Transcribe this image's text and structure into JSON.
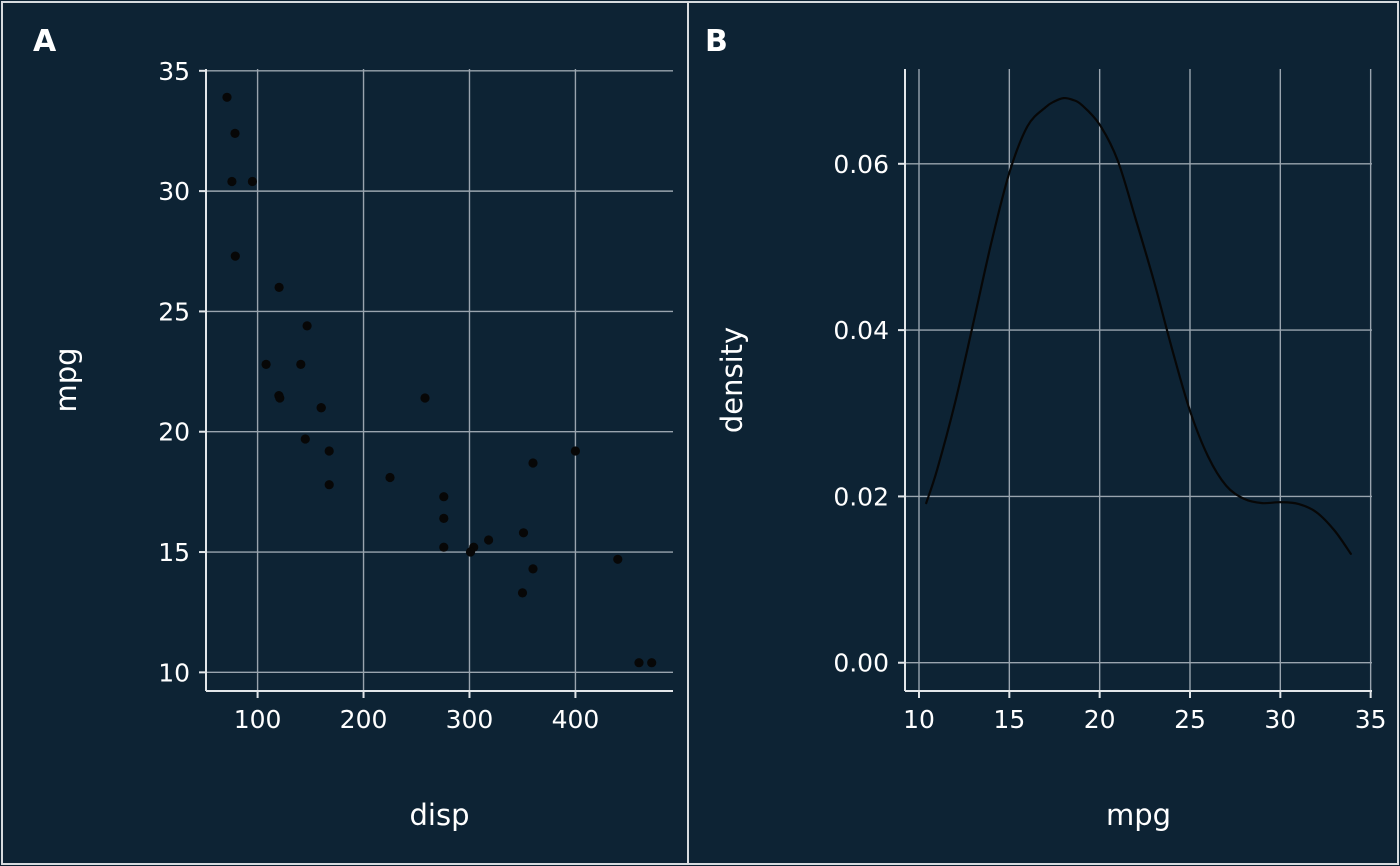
{
  "theme": {
    "background": "#0d2334",
    "panel_border": "#d7dbdf",
    "grid_color": "#99a4ae",
    "axis_color": "#e2e6e9",
    "text_color": "#ffffff",
    "point_color": "#070707",
    "curve_color": "#070707"
  },
  "chart_data": [
    {
      "id": "panel-a",
      "type": "scatter",
      "panel_label": "A",
      "xlabel": "disp",
      "ylabel": "mpg",
      "xlim": [
        51.3,
        492.1
      ],
      "ylim": [
        9.225,
        35.075
      ],
      "grid": true,
      "legend": "none",
      "x_ticks": [
        {
          "v": 100,
          "label": "100"
        },
        {
          "v": 200,
          "label": "200"
        },
        {
          "v": 300,
          "label": "300"
        },
        {
          "v": 400,
          "label": "400"
        }
      ],
      "y_ticks": [
        {
          "v": 10,
          "label": "10"
        },
        {
          "v": 15,
          "label": "15"
        },
        {
          "v": 20,
          "label": "20"
        },
        {
          "v": 25,
          "label": "25"
        },
        {
          "v": 30,
          "label": "30"
        },
        {
          "v": 35,
          "label": "35"
        }
      ],
      "points": [
        [
          160,
          21.0
        ],
        [
          160,
          21.0
        ],
        [
          108,
          22.8
        ],
        [
          258,
          21.4
        ],
        [
          360,
          18.7
        ],
        [
          225,
          18.1
        ],
        [
          360,
          14.3
        ],
        [
          146.7,
          24.4
        ],
        [
          140.8,
          22.8
        ],
        [
          167.6,
          19.2
        ],
        [
          167.6,
          17.8
        ],
        [
          275.8,
          16.4
        ],
        [
          275.8,
          17.3
        ],
        [
          275.8,
          15.2
        ],
        [
          472,
          10.4
        ],
        [
          460,
          10.4
        ],
        [
          440,
          14.7
        ],
        [
          78.7,
          32.4
        ],
        [
          75.7,
          30.4
        ],
        [
          71.1,
          33.9
        ],
        [
          120.1,
          21.5
        ],
        [
          318,
          15.5
        ],
        [
          304,
          15.2
        ],
        [
          350,
          13.3
        ],
        [
          400,
          19.2
        ],
        [
          79,
          27.3
        ],
        [
          120.3,
          26.0
        ],
        [
          95.1,
          30.4
        ],
        [
          351,
          15.8
        ],
        [
          145,
          19.7
        ],
        [
          301,
          15.0
        ],
        [
          121,
          21.4
        ]
      ]
    },
    {
      "id": "panel-b",
      "type": "line",
      "panel_label": "B",
      "xlabel": "mpg",
      "ylabel": "density",
      "xlim": [
        9.225,
        35.075
      ],
      "ylim": [
        -0.0034,
        0.0714
      ],
      "grid": true,
      "legend": "none",
      "x_ticks": [
        {
          "v": 10,
          "label": "10"
        },
        {
          "v": 15,
          "label": "15"
        },
        {
          "v": 20,
          "label": "20"
        },
        {
          "v": 25,
          "label": "25"
        },
        {
          "v": 30,
          "label": "30"
        },
        {
          "v": 35,
          "label": "35"
        }
      ],
      "y_ticks": [
        {
          "v": 0.0,
          "label": "0.00"
        },
        {
          "v": 0.02,
          "label": "0.02"
        },
        {
          "v": 0.04,
          "label": "0.04"
        },
        {
          "v": 0.06,
          "label": "0.06"
        }
      ],
      "curve": [
        [
          10.4,
          0.0192
        ],
        [
          11,
          0.0232
        ],
        [
          12,
          0.0313
        ],
        [
          13,
          0.0408
        ],
        [
          14,
          0.0505
        ],
        [
          15,
          0.0589
        ],
        [
          16,
          0.0645
        ],
        [
          17,
          0.0668
        ],
        [
          17.5,
          0.0675
        ],
        [
          18,
          0.0679
        ],
        [
          18.5,
          0.0677
        ],
        [
          19,
          0.0671
        ],
        [
          20,
          0.0647
        ],
        [
          21,
          0.0604
        ],
        [
          22,
          0.0533
        ],
        [
          23,
          0.0459
        ],
        [
          24,
          0.0378
        ],
        [
          25,
          0.0303
        ],
        [
          26,
          0.0248
        ],
        [
          27,
          0.0213
        ],
        [
          28,
          0.0197
        ],
        [
          29,
          0.0192
        ],
        [
          30,
          0.0193
        ],
        [
          31,
          0.0191
        ],
        [
          32,
          0.0181
        ],
        [
          33,
          0.0159
        ],
        [
          33.9,
          0.0131
        ]
      ]
    }
  ]
}
